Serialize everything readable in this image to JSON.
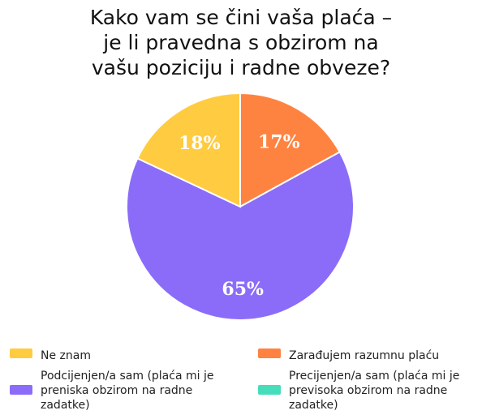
{
  "chart_data": {
    "type": "pie",
    "title_lines": [
      "Kako vam se čini vaša plaća –",
      "je li pravedna s obzirom na",
      "vašu poziciju i radne obveze?"
    ],
    "slices": [
      {
        "label": "Zarađujem razumnu plaću",
        "value": 17,
        "display": "17%",
        "color": "#FF8340"
      },
      {
        "label": "Podcijenjen/a sam (plaća mi je preniska obzirom na radne zadatke)",
        "value": 65,
        "display": "65%",
        "color": "#8B6CF8"
      },
      {
        "label": "Ne znam",
        "value": 18,
        "display": "18%",
        "color": "#FFCB41"
      },
      {
        "label": "Precijenjen/a sam (plaća mi je previsoka obzirom na radne zadatke)",
        "value": 0,
        "display": "",
        "color": "#46DDBB"
      }
    ],
    "legend": {
      "placement": "bottom",
      "items": [
        {
          "key": "ne_znam",
          "lines": [
            "Ne znam"
          ],
          "color": "#FFCB41"
        },
        {
          "key": "zaradujem",
          "lines": [
            "Zarađujem razumnu plaću"
          ],
          "color": "#FF8340"
        },
        {
          "key": "podcijenjen",
          "lines": [
            "Podcijenjen/a sam (plaća mi je",
            "preniska obzirom na radne",
            "zadatke)"
          ],
          "color": "#8B6CF8"
        },
        {
          "key": "precijenjen",
          "lines": [
            "Precijenjen/a sam (plaća mi je",
            "previsoka obzirom na radne",
            "zadatke)"
          ],
          "color": "#46DDBB"
        }
      ]
    }
  }
}
